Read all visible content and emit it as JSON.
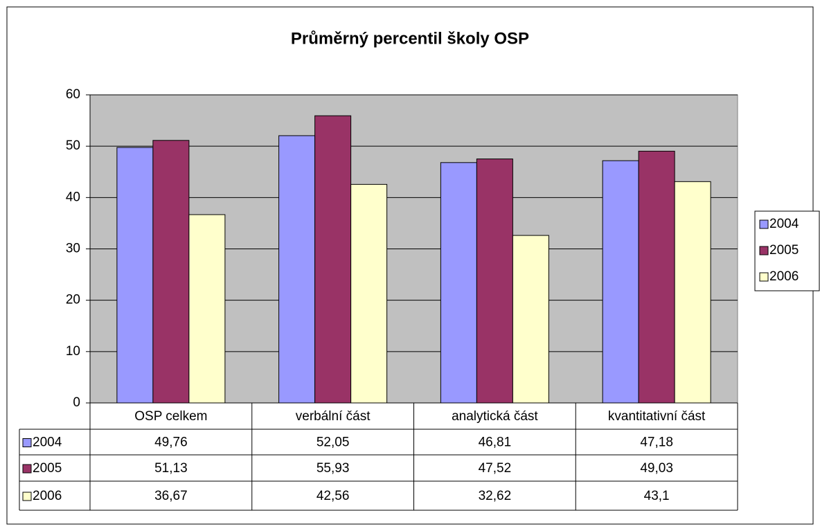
{
  "chart_data": {
    "type": "bar",
    "title": "Průměrný percentil školy OSP",
    "categories": [
      "OSP celkem",
      "verbální část",
      "analytická část",
      "kvantitativní část"
    ],
    "series": [
      {
        "name": "2004",
        "color": "#9999ff",
        "values": [
          49.76,
          52.05,
          46.81,
          47.18
        ],
        "value_labels": [
          "49,76",
          "52,05",
          "46,81",
          "47,18"
        ]
      },
      {
        "name": "2005",
        "color": "#993366",
        "values": [
          51.13,
          55.93,
          47.52,
          49.03
        ],
        "value_labels": [
          "51,13",
          "55,93",
          "47,52",
          "49,03"
        ]
      },
      {
        "name": "2006",
        "color": "#ffffcc",
        "values": [
          36.67,
          42.56,
          32.62,
          43.1
        ],
        "value_labels": [
          "36,67",
          "42,56",
          "32,62",
          "43,1"
        ]
      }
    ],
    "ylim": [
      0,
      60
    ],
    "yticks": [
      0,
      10,
      20,
      30,
      40,
      50,
      60
    ],
    "grid": true,
    "plot_background": "#c0c0c0",
    "legend": "right"
  }
}
